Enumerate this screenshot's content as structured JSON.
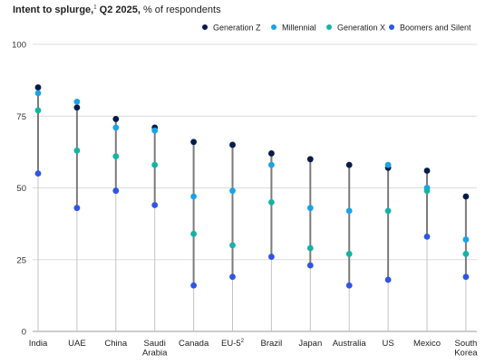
{
  "header": {
    "title": "Intent to splurge,",
    "title_sup": "1",
    "title_period": " Q2 2025,",
    "subtitle": " % of respondents"
  },
  "chart_data": {
    "type": "scatter",
    "title": "Intent to splurge,1 Q2 2025",
    "ylabel": "% of respondents",
    "ylim": [
      0,
      100
    ],
    "yticks": [
      0,
      25,
      50,
      75,
      100
    ],
    "grid": true,
    "legend_position": "top-right",
    "categories": [
      "India",
      "UAE",
      "China",
      "Saudi Arabia",
      "Canada",
      "EU-5",
      "Brazil",
      "Japan",
      "Australia",
      "US",
      "Mexico",
      "South Korea"
    ],
    "category_labels": [
      {
        "lines": [
          "India"
        ]
      },
      {
        "lines": [
          "UAE"
        ]
      },
      {
        "lines": [
          "China"
        ]
      },
      {
        "lines": [
          "Saudi",
          "Arabia"
        ]
      },
      {
        "lines": [
          "Canada"
        ]
      },
      {
        "lines": [
          "EU-5"
        ],
        "sup": "2"
      },
      {
        "lines": [
          "Brazil"
        ]
      },
      {
        "lines": [
          "Japan"
        ]
      },
      {
        "lines": [
          "Australia"
        ]
      },
      {
        "lines": [
          "US"
        ]
      },
      {
        "lines": [
          "Mexico"
        ]
      },
      {
        "lines": [
          "South",
          "Korea"
        ]
      }
    ],
    "series": [
      {
        "name": "Generation Z",
        "color": "#051c4a",
        "values": [
          85,
          78,
          74,
          71,
          66,
          65,
          62,
          60,
          58,
          57,
          56,
          47
        ]
      },
      {
        "name": "Millennial",
        "color": "#1aa3e6",
        "values": [
          83,
          80,
          71,
          70,
          47,
          49,
          58,
          43,
          42,
          58,
          50,
          32
        ]
      },
      {
        "name": "Generation X",
        "color": "#14b3a6",
        "values": [
          77,
          63,
          61,
          58,
          34,
          30,
          45,
          29,
          27,
          42,
          49,
          27
        ]
      },
      {
        "name": "Boomers and Silent",
        "color": "#2f55e6",
        "values": [
          55,
          43,
          49,
          44,
          16,
          19,
          26,
          23,
          16,
          18,
          33,
          19
        ]
      }
    ]
  }
}
